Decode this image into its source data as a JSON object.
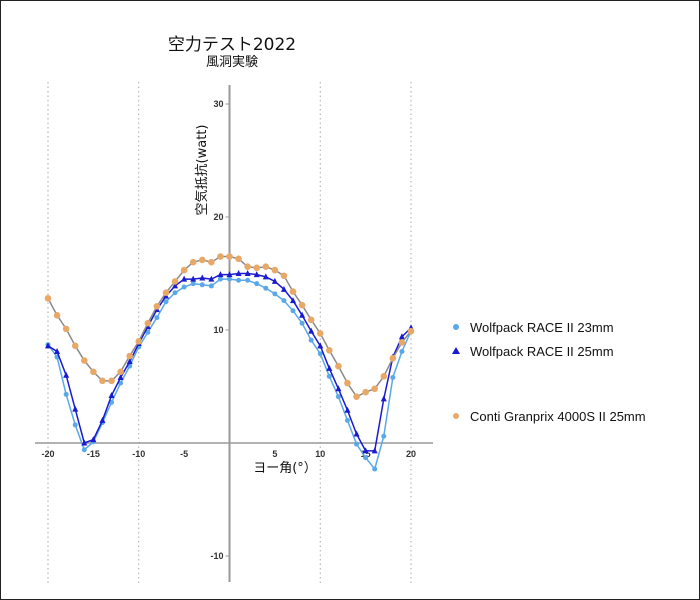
{
  "chart_data": {
    "type": "line",
    "title": "空力テスト2022",
    "subtitle": "風洞実験",
    "xlabel": "ヨー角(°）",
    "ylabel": "空気抵抗(watt)",
    "xlim": [
      -22,
      22
    ],
    "ylim": [
      -10,
      32
    ],
    "xticks": [
      -20,
      -15,
      -10,
      -5,
      5,
      10,
      15,
      20
    ],
    "xtick_labels": [
      "-20",
      "-15",
      "-10",
      "-5",
      "5",
      "10",
      "15",
      "20"
    ],
    "yticks": [
      30,
      20,
      10,
      -10
    ],
    "ytick_labels": [
      "30",
      "20",
      "10",
      "-10"
    ],
    "grid": "vertical dotted at x=-20,-10,10,20",
    "legend_position": "right",
    "x": [
      -20,
      -19,
      -18,
      -17,
      -16,
      -15,
      -14,
      -13,
      -12,
      -11,
      -10,
      -9,
      -8,
      -7,
      -6,
      -5,
      -4,
      -3,
      -2,
      -1,
      0,
      1,
      2,
      3,
      4,
      5,
      6,
      7,
      8,
      9,
      10,
      11,
      12,
      13,
      14,
      15,
      16,
      17,
      18,
      19,
      20
    ],
    "series": [
      {
        "name": "Wolfpack RACE II 23mm",
        "color": "#5aa8e8",
        "marker": "circle",
        "values": [
          8.7,
          7.6,
          4.3,
          1.6,
          -0.6,
          0.1,
          1.8,
          3.6,
          5.3,
          6.8,
          8.5,
          9.8,
          11.1,
          12.5,
          13.3,
          13.8,
          14.1,
          14.0,
          13.9,
          14.5,
          14.5,
          14.4,
          14.4,
          14.1,
          13.7,
          13.2,
          12.6,
          11.7,
          10.6,
          9.1,
          7.9,
          5.9,
          4.1,
          2.0,
          -0.1,
          -1.3,
          -2.3,
          0.6,
          5.8,
          8.1,
          9.9
        ]
      },
      {
        "name": "Wolfpack RACE II 25mm",
        "color": "#1a1ad0",
        "marker": "triangle",
        "values": [
          8.6,
          8.1,
          6.0,
          3.0,
          0.0,
          0.3,
          2.0,
          4.2,
          5.8,
          7.2,
          8.8,
          10.3,
          11.8,
          13.0,
          13.9,
          14.5,
          14.5,
          14.6,
          14.5,
          14.9,
          14.9,
          15.0,
          15.0,
          14.9,
          14.7,
          14.3,
          13.6,
          12.6,
          11.3,
          9.9,
          8.6,
          6.6,
          4.8,
          2.9,
          0.8,
          -0.7,
          -0.7,
          3.9,
          7.6,
          9.4,
          10.2
        ]
      },
      {
        "name": "Conti Granprix 4000S II  25mm",
        "color": "#e8a868",
        "line_color": "#8a8a8a",
        "marker": "circle",
        "values": [
          12.8,
          11.3,
          10.1,
          8.6,
          7.3,
          6.3,
          5.5,
          5.5,
          6.3,
          7.7,
          9.0,
          10.6,
          12.1,
          13.3,
          14.3,
          15.3,
          16.0,
          16.2,
          16.0,
          16.5,
          16.5,
          16.3,
          15.6,
          15.5,
          15.6,
          15.3,
          14.8,
          13.4,
          12.2,
          10.9,
          9.7,
          8.2,
          6.8,
          5.3,
          4.1,
          4.5,
          4.8,
          5.9,
          7.5,
          8.9,
          9.9
        ]
      }
    ]
  }
}
